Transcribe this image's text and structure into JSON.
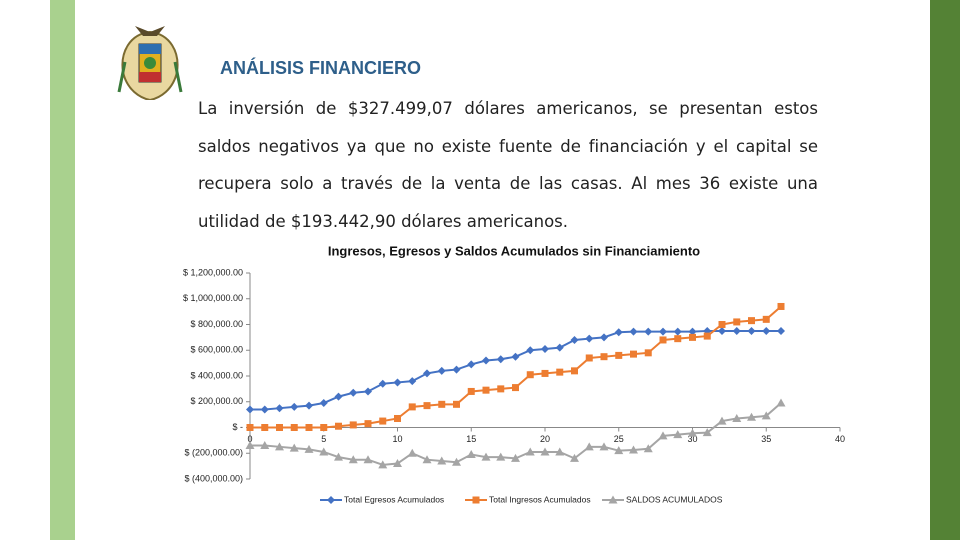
{
  "header": {
    "title": "ANÁLISIS FINANCIERO"
  },
  "paragraph": "La inversión de $327.499,07 dólares americanos, se presentan estos saldos negativos ya que no existe fuente de financiación y el capital se recupera solo a través de la venta de las casas. Al mes 36 existe una utilidad de $193.442,90 dólares americanos.",
  "chart_data": {
    "type": "line",
    "title": "Ingresos, Egresos y Saldos Acumulados sin Financiamiento",
    "x": [
      0,
      1,
      2,
      3,
      4,
      5,
      6,
      7,
      8,
      9,
      10,
      11,
      12,
      13,
      14,
      15,
      16,
      17,
      18,
      19,
      20,
      21,
      22,
      23,
      24,
      25,
      26,
      27,
      28,
      29,
      30,
      31,
      32,
      33,
      34,
      35,
      36
    ],
    "xlim": [
      0,
      40
    ],
    "xticks": [
      0,
      5,
      10,
      15,
      20,
      25,
      30,
      35,
      40
    ],
    "ylim": [
      -400000,
      1200000
    ],
    "yticks": [
      {
        "value": 1200000,
        "label": "$ 1,200,000.00"
      },
      {
        "value": 1000000,
        "label": "$ 1,000,000.00"
      },
      {
        "value": 800000,
        "label": "$ 800,000.00"
      },
      {
        "value": 600000,
        "label": "$ 600,000.00"
      },
      {
        "value": 400000,
        "label": "$ 400,000.00"
      },
      {
        "value": 200000,
        "label": "$ 200,000.00"
      },
      {
        "value": 0,
        "label": "$ -"
      },
      {
        "value": -200000,
        "label": "$ (200,000.00)"
      },
      {
        "value": -400000,
        "label": "$ (400,000.00)"
      }
    ],
    "grid": false,
    "legend": "bottom",
    "series": [
      {
        "name": "Total Egresos Acumulados",
        "color": "#4472c4",
        "marker": "diamond",
        "values": [
          140000,
          140000,
          150000,
          160000,
          170000,
          190000,
          240000,
          270000,
          280000,
          340000,
          350000,
          360000,
          420000,
          440000,
          450000,
          490000,
          520000,
          530000,
          550000,
          600000,
          610000,
          620000,
          680000,
          690000,
          700000,
          740000,
          745000,
          745000,
          745000,
          745000,
          745000,
          750000,
          750000,
          750000,
          750000,
          750000,
          750000
        ]
      },
      {
        "name": "Total Ingresos Acumulados",
        "color": "#ed7d31",
        "marker": "square",
        "values": [
          0,
          0,
          0,
          0,
          0,
          0,
          10000,
          20000,
          30000,
          50000,
          70000,
          160000,
          170000,
          180000,
          180000,
          280000,
          290000,
          300000,
          310000,
          410000,
          420000,
          430000,
          440000,
          540000,
          550000,
          560000,
          570000,
          580000,
          680000,
          690000,
          700000,
          710000,
          800000,
          820000,
          830000,
          840000,
          940000
        ]
      },
      {
        "name": "SALDOS ACUMULADOS",
        "color": "#a5a5a5",
        "marker": "triangle",
        "values": [
          -140000,
          -140000,
          -150000,
          -160000,
          -170000,
          -190000,
          -230000,
          -250000,
          -250000,
          -290000,
          -280000,
          -200000,
          -250000,
          -260000,
          -270000,
          -210000,
          -230000,
          -230000,
          -240000,
          -190000,
          -190000,
          -190000,
          -240000,
          -150000,
          -150000,
          -180000,
          -175000,
          -165000,
          -65000,
          -55000,
          -45000,
          -40000,
          50000,
          70000,
          80000,
          90000,
          190000
        ]
      }
    ]
  }
}
